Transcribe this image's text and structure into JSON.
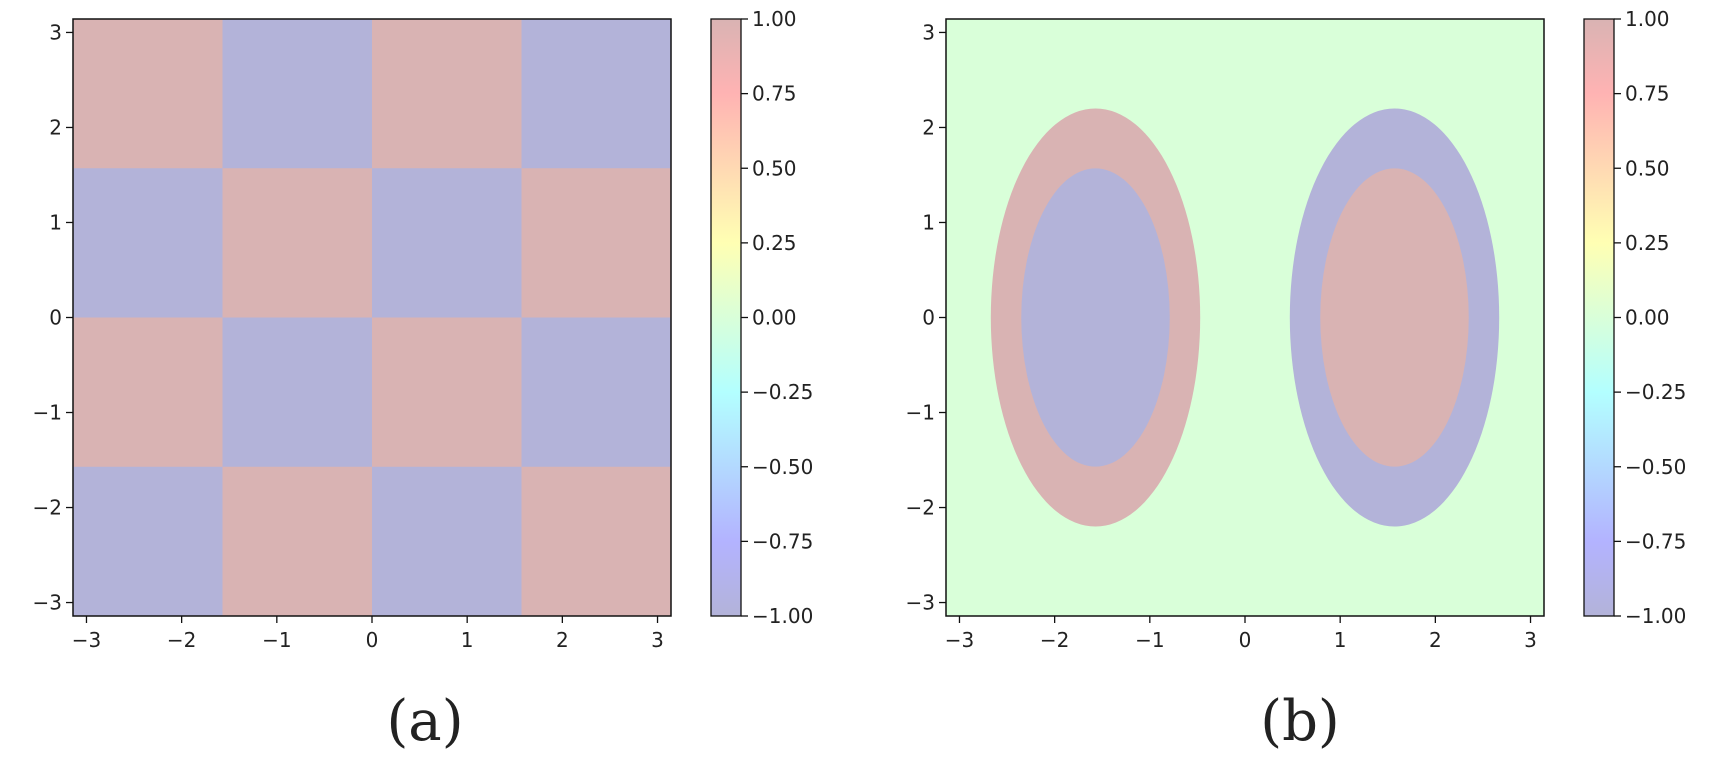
{
  "chart_data": [
    {
      "type": "heatmap",
      "panel_label": "(a)",
      "title": "",
      "xlabel": "",
      "ylabel": "",
      "xlim": [
        -3.14159,
        3.14159
      ],
      "ylim": [
        -3.14159,
        3.14159
      ],
      "x_ticks": [
        -3,
        -2,
        -1,
        0,
        1,
        2,
        3
      ],
      "y_ticks": [
        -3,
        -2,
        -1,
        0,
        1,
        2,
        3
      ],
      "x_tick_labels": [
        "−3",
        "−2",
        "−1",
        "0",
        "1",
        "2",
        "3"
      ],
      "y_tick_labels": [
        "−3",
        "−2",
        "−1",
        "0",
        "1",
        "2",
        "3"
      ],
      "grid": false,
      "x_edges": [
        -3.14159,
        -1.5708,
        0,
        1.5708,
        3.14159
      ],
      "y_edges": [
        -3.14159,
        -1.5708,
        0,
        1.5708,
        3.14159
      ],
      "z_rows_top_to_bottom": [
        [
          1,
          -1,
          1,
          -1
        ],
        [
          -1,
          1,
          -1,
          1
        ],
        [
          1,
          -1,
          1,
          -1
        ],
        [
          -1,
          1,
          -1,
          1
        ]
      ],
      "colorbar": {
        "min": -1.0,
        "max": 1.0,
        "ticks": [
          1.0,
          0.75,
          0.5,
          0.25,
          0.0,
          -0.25,
          -0.5,
          -0.75,
          -1.0
        ],
        "tick_labels": [
          "1.00",
          "0.75",
          "0.50",
          "0.25",
          "0.00",
          "−0.25",
          "−0.50",
          "−0.75",
          "−1.00"
        ]
      }
    },
    {
      "type": "heatmap",
      "panel_label": "(b)",
      "title": "",
      "xlabel": "",
      "ylabel": "",
      "xlim": [
        -3.14159,
        3.14159
      ],
      "ylim": [
        -3.14159,
        3.14159
      ],
      "x_ticks": [
        -3,
        -2,
        -1,
        0,
        1,
        2,
        3
      ],
      "y_ticks": [
        -3,
        -2,
        -1,
        0,
        1,
        2,
        3
      ],
      "x_tick_labels": [
        "−3",
        "−2",
        "−1",
        "0",
        "1",
        "2",
        "3"
      ],
      "y_tick_labels": [
        "−3",
        "−2",
        "−1",
        "0",
        "1",
        "2",
        "3"
      ],
      "grid": false,
      "background_value": 0,
      "regions": [
        {
          "shape": "ellipse",
          "cx": -1.5708,
          "cy": 0,
          "rx": 1.1,
          "ry": 2.2,
          "value": 1
        },
        {
          "shape": "ellipse",
          "cx": -1.5708,
          "cy": 0,
          "rx": 0.78,
          "ry": 1.57,
          "value": -1
        },
        {
          "shape": "ellipse",
          "cx": 1.5708,
          "cy": 0,
          "rx": 1.1,
          "ry": 2.2,
          "value": -1
        },
        {
          "shape": "ellipse",
          "cx": 1.5708,
          "cy": 0,
          "rx": 0.78,
          "ry": 1.57,
          "value": 1
        }
      ],
      "colorbar": {
        "min": -1.0,
        "max": 1.0,
        "ticks": [
          1.0,
          0.75,
          0.5,
          0.25,
          0.0,
          -0.25,
          -0.5,
          -0.75,
          -1.0
        ],
        "tick_labels": [
          "1.00",
          "0.75",
          "0.50",
          "0.25",
          "0.00",
          "−0.25",
          "−0.50",
          "−0.75",
          "−1.00"
        ]
      }
    }
  ],
  "colormap": {
    "name": "jet",
    "alpha": 0.3,
    "stops": [
      "#00007f",
      "#0000ff",
      "#007fff",
      "#00ffff",
      "#7fff7f",
      "#ffff00",
      "#ff7f00",
      "#ff0000",
      "#7f0000"
    ]
  }
}
